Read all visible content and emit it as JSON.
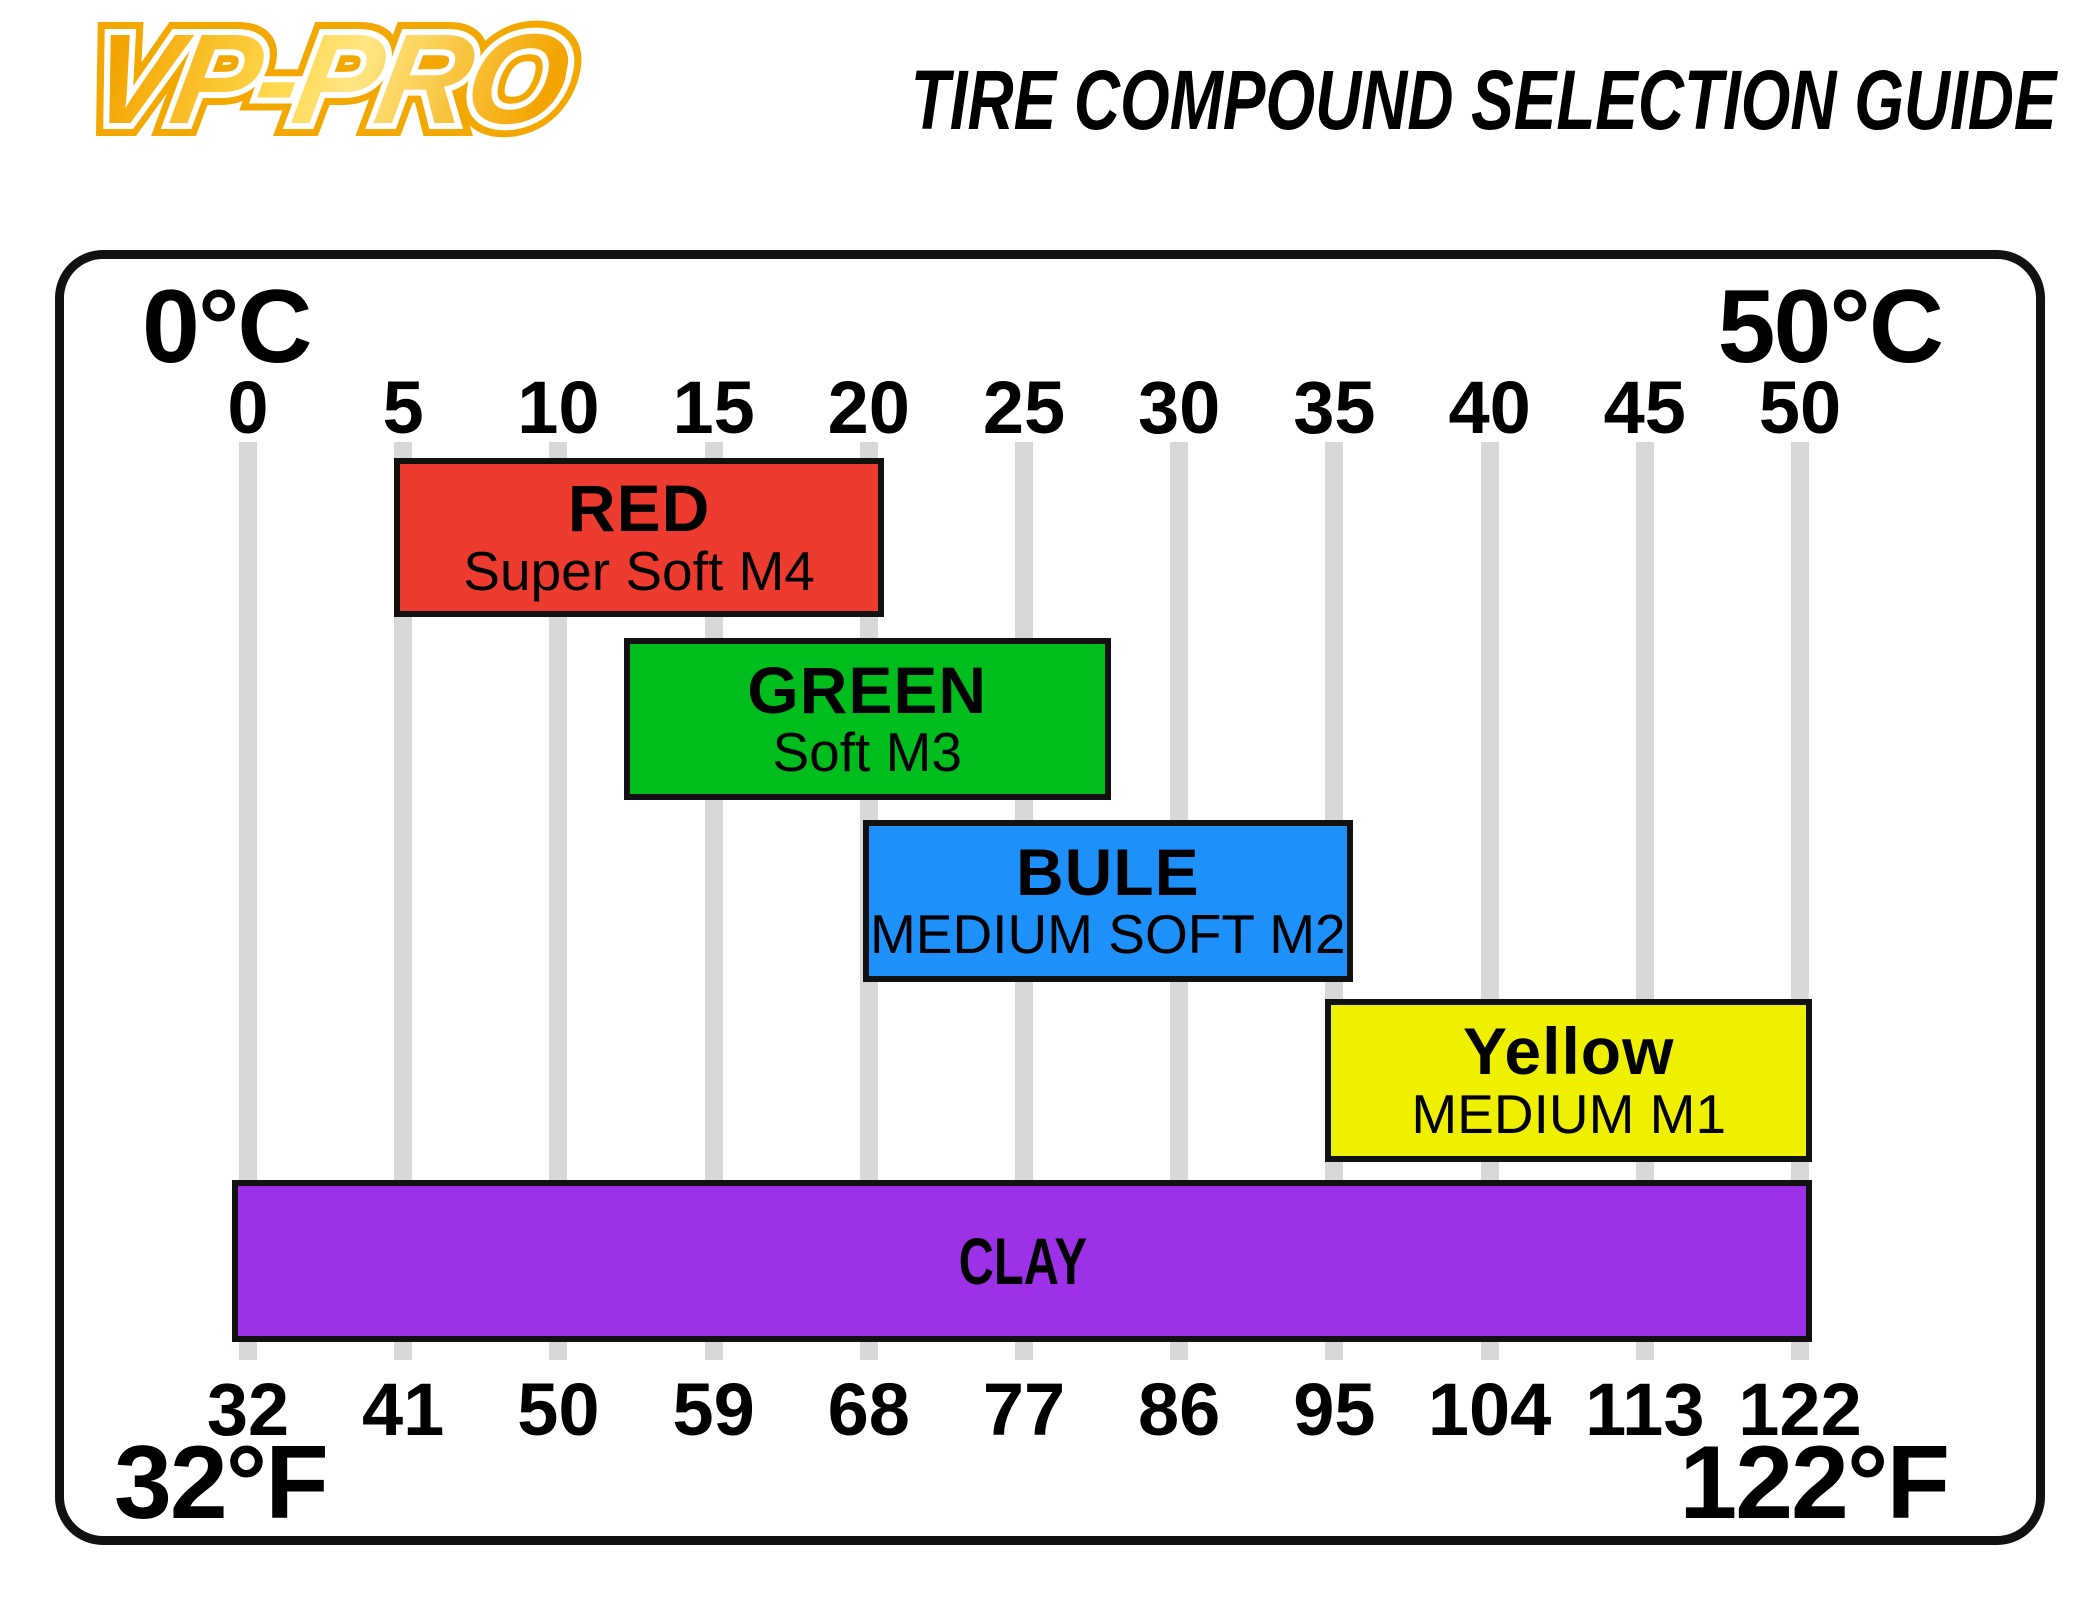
{
  "header": {
    "logo_text": "VP-PRO",
    "title": "TIRE COMPOUND SELECTION GUIDE"
  },
  "chart_data": {
    "type": "bar",
    "subtype": "horizontal-temperature-range",
    "title": "TIRE COMPOUND SELECTION GUIDE",
    "grid": true,
    "xlim_c": [
      0,
      50
    ],
    "axes": {
      "top": {
        "unit": "°C",
        "min_label": "0°C",
        "max_label": "50°C",
        "ticks": [
          "0",
          "5",
          "10",
          "15",
          "20",
          "25",
          "30",
          "35",
          "40",
          "45",
          "50"
        ]
      },
      "bottom": {
        "unit": "°F",
        "min_label": "32°F",
        "max_label": "122°F",
        "ticks": [
          "32",
          "41",
          "50",
          "59",
          "68",
          "77",
          "86",
          "95",
          "104",
          "113",
          "122"
        ]
      }
    },
    "series": [
      {
        "label": "RED",
        "sublabel": "Super Soft M4",
        "color": "#ee3b30",
        "start_c": 4.7,
        "end_c": 20.5
      },
      {
        "label": "GREEN",
        "sublabel": "Soft M3",
        "color": "#00bd1e",
        "start_c": 12.1,
        "end_c": 27.8
      },
      {
        "label": "BULE",
        "sublabel": "MEDIUM SOFT M2",
        "color": "#1e90fa",
        "start_c": 19.8,
        "end_c": 35.6
      },
      {
        "label": "Yellow",
        "sublabel": "MEDIUM M1",
        "color": "#efef00",
        "start_c": 34.7,
        "end_c": 50.4
      },
      {
        "label": "CLAY",
        "sublabel": "",
        "color": "#9c31e8",
        "start_c": -0.5,
        "end_c": 50.4
      }
    ]
  },
  "colors": {
    "frame_border": "#111111",
    "gridline": "#d8d8d8",
    "bar_border": "#111111",
    "logo_gold": "#f2a800",
    "logo_gold_light": "#ffd84d",
    "title_text": "#000000"
  }
}
